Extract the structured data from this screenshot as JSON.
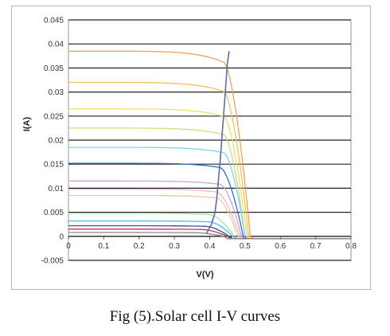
{
  "caption": "Fig (5).Solar cell I-V curves",
  "chart_data": {
    "type": "line",
    "title": "",
    "xlabel": "V(V)",
    "ylabel": "I(A)",
    "xlim": [
      0,
      0.8
    ],
    "ylim": [
      -0.005,
      0.045
    ],
    "x_ticks": [
      "0",
      "0.1",
      "0.2",
      "0.3",
      "0.4",
      "0.5",
      "0.6",
      "0.7",
      "0.8"
    ],
    "y_ticks": [
      "-0.005",
      "0",
      "0.005",
      "0.01",
      "0.015",
      "0.02",
      "0.025",
      "0.03",
      "0.035",
      "0.04",
      "0.045"
    ],
    "grid": "horizontal",
    "legend": "none",
    "series": [
      {
        "color": "#f2a05a",
        "isc": 0.0385,
        "knee_v": 0.44,
        "voc": 0.515
      },
      {
        "color": "#f3c25e",
        "isc": 0.032,
        "knee_v": 0.44,
        "voc": 0.51
      },
      {
        "color": "#efe06a",
        "isc": 0.0265,
        "knee_v": 0.44,
        "voc": 0.505
      },
      {
        "color": "#cbe07a",
        "isc": 0.0225,
        "knee_v": 0.44,
        "voc": 0.5
      },
      {
        "color": "#7fd3e8",
        "isc": 0.0185,
        "knee_v": 0.44,
        "voc": 0.5
      },
      {
        "color": "#2b6fc9",
        "isc": 0.0152,
        "knee_v": 0.43,
        "voc": 0.495
      },
      {
        "color": "#c5a7d8",
        "isc": 0.0115,
        "knee_v": 0.43,
        "voc": 0.49
      },
      {
        "color": "#f0b8c8",
        "isc": 0.0098,
        "knee_v": 0.42,
        "voc": 0.485
      },
      {
        "color": "#f5c6a0",
        "isc": 0.0085,
        "knee_v": 0.42,
        "voc": 0.48
      },
      {
        "color": "#a8e0a8",
        "isc": 0.0048,
        "knee_v": 0.4,
        "voc": 0.47
      },
      {
        "color": "#3fc2e6",
        "isc": 0.0032,
        "knee_v": 0.4,
        "voc": 0.465
      },
      {
        "color": "#2a55a0",
        "isc": 0.0022,
        "knee_v": 0.39,
        "voc": 0.455
      },
      {
        "color": "#cc2f4f",
        "isc": 0.0015,
        "knee_v": 0.38,
        "voc": 0.45
      },
      {
        "color": "#8a8a8a",
        "isc": 0.0008,
        "knee_v": 0.36,
        "voc": 0.44
      }
    ],
    "mpp_curve": {
      "color": "#5a6ea8",
      "points": [
        [
          0.39,
          0.0005
        ],
        [
          0.405,
          0.0025
        ],
        [
          0.415,
          0.005
        ],
        [
          0.42,
          0.008
        ],
        [
          0.425,
          0.012
        ],
        [
          0.43,
          0.016
        ],
        [
          0.435,
          0.021
        ],
        [
          0.44,
          0.026
        ],
        [
          0.445,
          0.031
        ],
        [
          0.45,
          0.036
        ],
        [
          0.455,
          0.0385
        ]
      ]
    }
  }
}
